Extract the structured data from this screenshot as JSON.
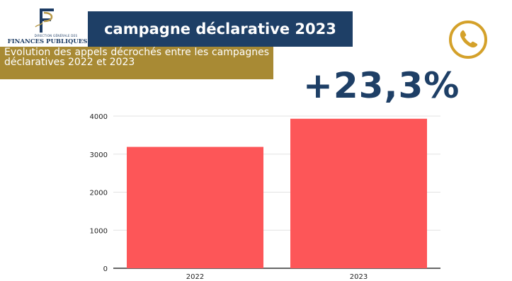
{
  "logo": {
    "org_small": "DIRECTION GÉNÉRALE DES",
    "org_big": "FINANCES PUBLIQUES"
  },
  "header": {
    "title": "campagne déclarative 2023"
  },
  "subtitle": "Evolution des appels décrochés entre les campagnes déclaratives 2022 et 2023",
  "highlight": {
    "value": "+23,3%"
  },
  "icons": {
    "phone": "phone-icon",
    "logo": "dgfip-logo-icon"
  },
  "colors": {
    "navy": "#1e3f66",
    "gold": "#a88a34",
    "bar": "#fd5658"
  },
  "chart_data": {
    "type": "bar",
    "categories": [
      "2022",
      "2023"
    ],
    "values": [
      3190,
      3930
    ],
    "title": "",
    "xlabel": "",
    "ylabel": "",
    "ylim": [
      0,
      4000
    ],
    "yticks": [
      0,
      1000,
      2000,
      3000,
      4000
    ],
    "grid": true,
    "legend": "none"
  }
}
